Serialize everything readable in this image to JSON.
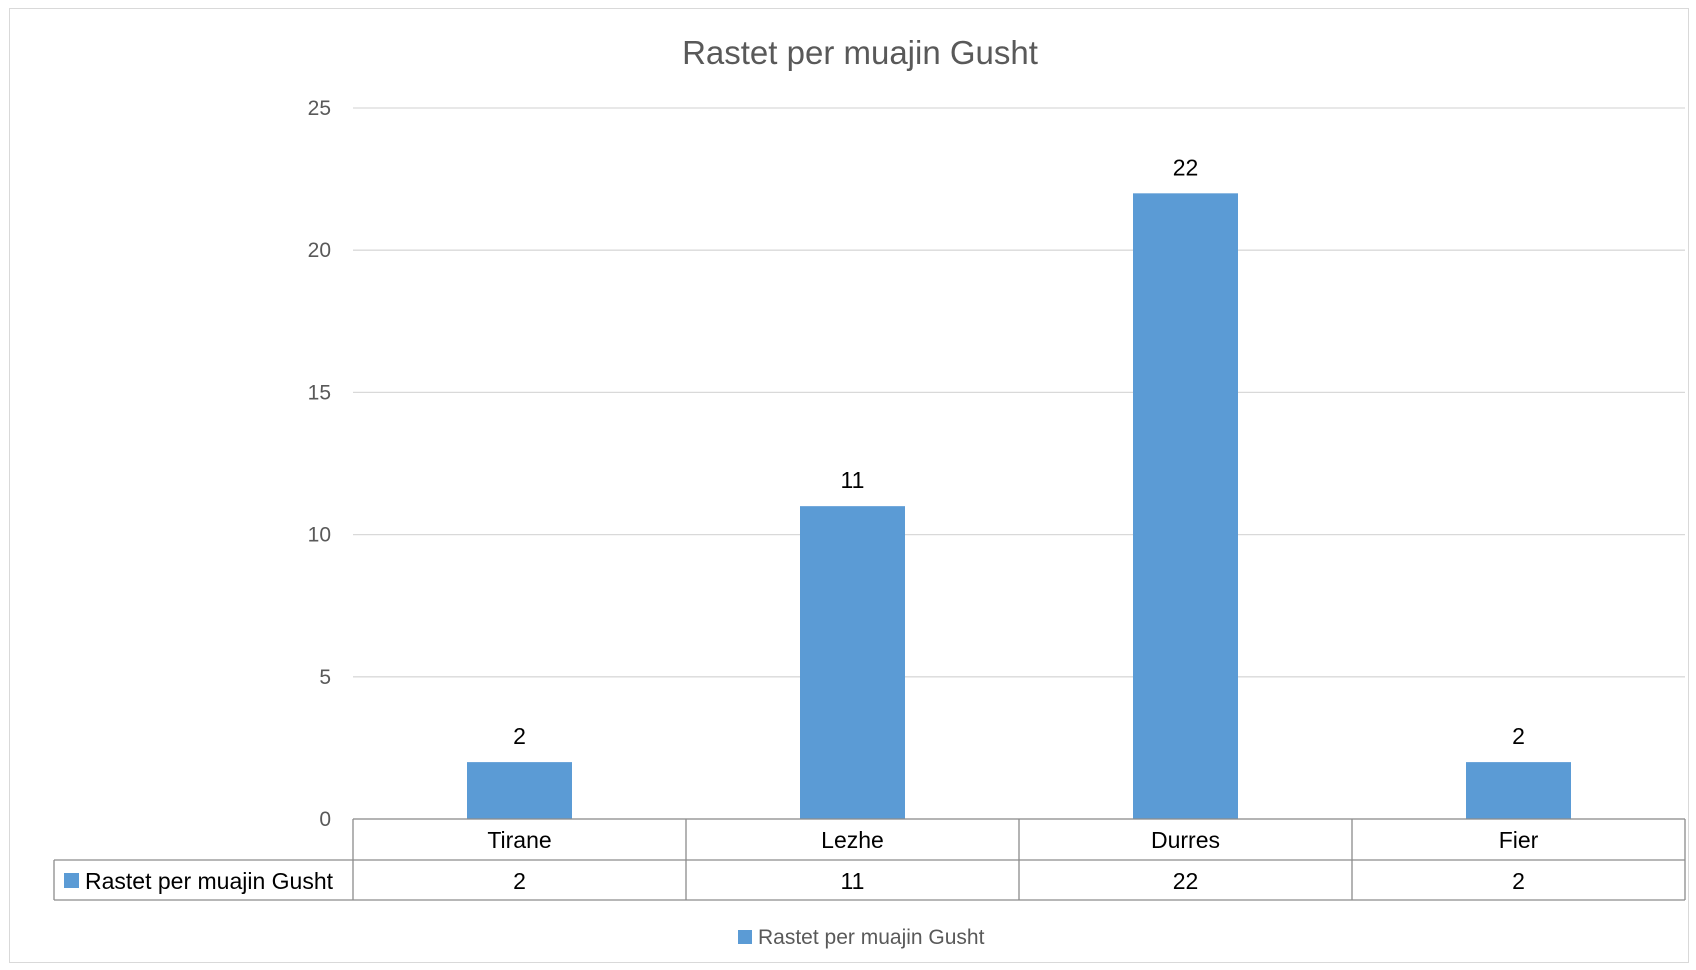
{
  "chart_data": {
    "type": "bar",
    "title": "Rastet per muajin Gusht",
    "categories": [
      "Tirane",
      "Lezhe",
      "Durres",
      "Fier"
    ],
    "series": [
      {
        "name": "Rastet per muajin Gusht",
        "values": [
          2,
          11,
          22,
          2
        ],
        "color": "#5b9bd5"
      }
    ],
    "ylim": [
      0,
      25
    ],
    "yticks": [
      "0",
      "5",
      "10",
      "15",
      "20",
      "25"
    ],
    "data_labels": true,
    "data_table": true,
    "grid": true,
    "legend": "bottom"
  }
}
